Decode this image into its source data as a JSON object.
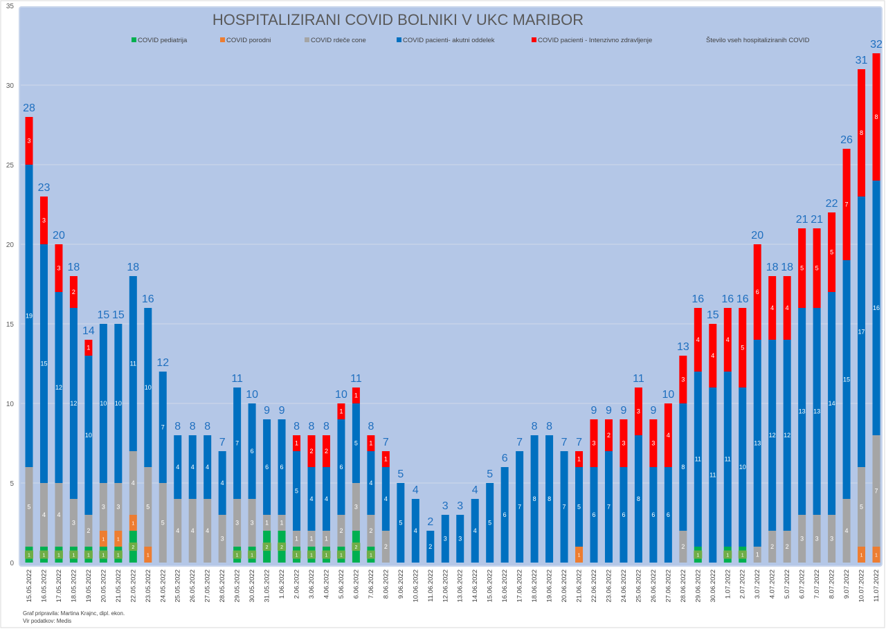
{
  "chart_data": {
    "type": "bar",
    "stacked": true,
    "title": "HOSPITALIZIRANI COVID BOLNIKI V UKC MARIBOR",
    "xlabel": "",
    "ylabel": "",
    "ylim": [
      0,
      35
    ],
    "yticks": [
      0,
      5,
      10,
      15,
      20,
      25,
      30,
      35
    ],
    "grid": true,
    "legend_position": "top",
    "categories": [
      "15.05.2022",
      "16.05.2022",
      "17.05.2022",
      "18.05.2022",
      "19.05.2022",
      "20.05.2022",
      "21.05.2022",
      "22.05.2022",
      "23.05.2022",
      "24.05.2022",
      "25.05.2022",
      "26.05.2022",
      "27.05.2022",
      "28.05.2022",
      "29.05.2022",
      "30.05.2022",
      "31.05.2022",
      "1.06.2022",
      "2.06.2022",
      "3.06.2022",
      "4.06.2022",
      "5.06.2022",
      "6.06.2022",
      "7.06.2022",
      "8.06.2022",
      "9.06.2022",
      "10.06.2022",
      "11.06.2022",
      "12.06.2022",
      "13.06.2022",
      "14.06.2022",
      "15.06.2022",
      "16.06.2022",
      "17.06.2022",
      "18.06.2022",
      "19.06.2022",
      "20.06.2022",
      "21.06.2022",
      "22.06.2022",
      "23.06.2022",
      "24.06.2022",
      "25.06.2022",
      "26.06.2022",
      "27.06.2022",
      "28.06.2022",
      "29.06.2022",
      "30.06.2022",
      "1.07.2022",
      "2.07.2022",
      "3.07.2022",
      "4.07.2022",
      "5.07.2022",
      "6.07.2022",
      "7.07.2022",
      "8.07.2022",
      "9.07.2022",
      "10.07.2022",
      "11.07.2022"
    ],
    "series": [
      {
        "name": "COVID pediatrija",
        "color": "#00b050",
        "values": [
          1,
          1,
          1,
          1,
          1,
          1,
          1,
          2,
          0,
          0,
          0,
          0,
          0,
          0,
          1,
          1,
          2,
          2,
          1,
          1,
          1,
          1,
          2,
          1,
          0,
          0,
          0,
          0,
          0,
          0,
          0,
          0,
          0,
          0,
          0,
          0,
          0,
          0,
          0,
          0,
          0,
          0,
          0,
          0,
          0,
          1,
          0,
          1,
          1,
          0,
          0,
          0,
          0,
          0,
          0,
          0,
          0,
          0
        ]
      },
      {
        "name": "COVID porodni",
        "color": "#ed7d31",
        "values": [
          0,
          0,
          0,
          0,
          0,
          1,
          1,
          1,
          1,
          0,
          0,
          0,
          0,
          0,
          0,
          0,
          0,
          0,
          0,
          0,
          0,
          0,
          0,
          0,
          0,
          0,
          0,
          0,
          0,
          0,
          0,
          0,
          0,
          0,
          0,
          0,
          0,
          1,
          0,
          0,
          0,
          0,
          0,
          0,
          0,
          0,
          0,
          0,
          0,
          0,
          0,
          0,
          0,
          0,
          0,
          0,
          1,
          1
        ]
      },
      {
        "name": "COVID rdeče cone",
        "color": "#a5a5a5",
        "values": [
          5,
          4,
          4,
          3,
          2,
          3,
          3,
          4,
          5,
          5,
          4,
          4,
          4,
          3,
          3,
          3,
          1,
          1,
          1,
          1,
          1,
          2,
          3,
          2,
          2,
          0,
          0,
          0,
          0,
          0,
          0,
          0,
          0,
          0,
          0,
          0,
          0,
          0,
          0,
          0,
          0,
          0,
          0,
          0,
          2,
          0,
          0,
          0,
          0,
          1,
          2,
          2,
          3,
          3,
          3,
          4,
          5,
          7
        ]
      },
      {
        "name": "COVID pacienti- akutni oddelek",
        "color": "#0070c0",
        "values": [
          19,
          15,
          12,
          12,
          10,
          10,
          10,
          11,
          10,
          7,
          4,
          4,
          4,
          4,
          7,
          6,
          6,
          6,
          5,
          4,
          4,
          6,
          5,
          4,
          4,
          5,
          4,
          2,
          3,
          3,
          4,
          5,
          6,
          7,
          8,
          8,
          7,
          5,
          6,
          7,
          6,
          8,
          6,
          6,
          8,
          11,
          11,
          11,
          10,
          13,
          12,
          12,
          13,
          13,
          14,
          15,
          17,
          16
        ]
      },
      {
        "name": "COVID pacienti - Intenzivno zdravljenje",
        "color": "#ff0000",
        "values": [
          3,
          3,
          3,
          2,
          1,
          0,
          0,
          0,
          0,
          0,
          0,
          0,
          0,
          0,
          0,
          0,
          0,
          0,
          1,
          2,
          2,
          1,
          1,
          1,
          1,
          0,
          0,
          0,
          0,
          0,
          0,
          0,
          0,
          0,
          0,
          0,
          0,
          1,
          3,
          2,
          3,
          3,
          3,
          4,
          3,
          4,
          4,
          4,
          5,
          6,
          4,
          4,
          5,
          5,
          5,
          7,
          8,
          8
        ]
      }
    ],
    "totals_series_name": "Število vseh hospitaliziranih COVID",
    "totals": [
      28,
      23,
      20,
      18,
      14,
      15,
      15,
      18,
      16,
      12,
      8,
      8,
      8,
      7,
      11,
      10,
      9,
      9,
      8,
      8,
      8,
      10,
      11,
      8,
      7,
      5,
      4,
      2,
      3,
      3,
      4,
      5,
      6,
      7,
      8,
      8,
      7,
      7,
      9,
      9,
      9,
      11,
      9,
      10,
      13,
      16,
      15,
      16,
      16,
      20,
      18,
      18,
      21,
      21,
      22,
      26,
      31,
      32
    ]
  },
  "footer": {
    "author": "Graf pripravila: Martina Krajnc, dipl. ekon.",
    "source": "Vir podatkov: Medis"
  }
}
